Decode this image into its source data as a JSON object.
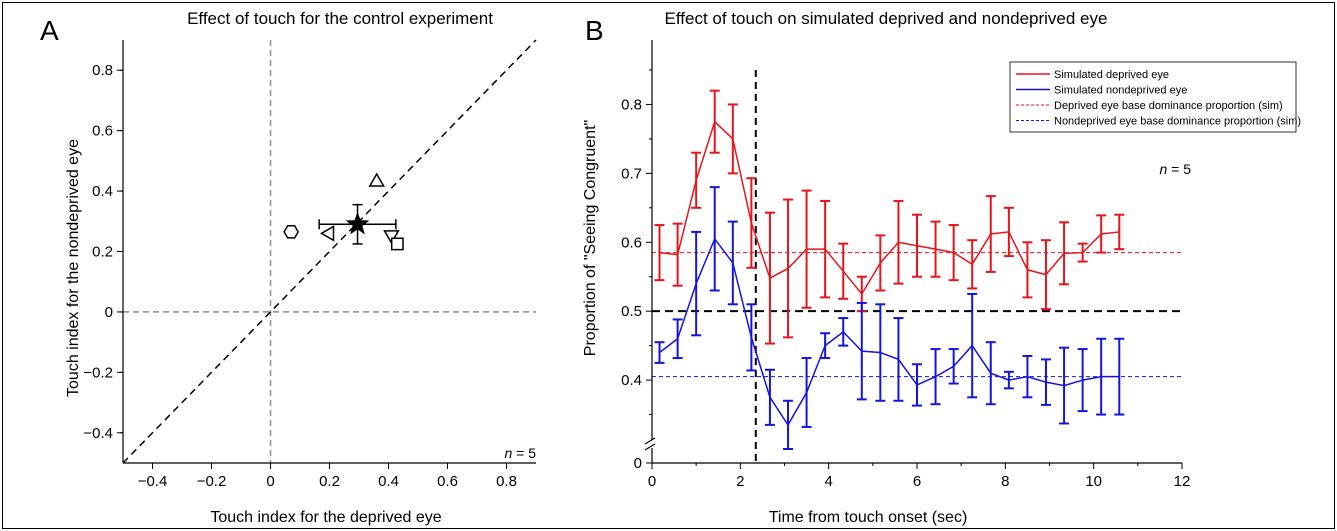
{
  "panel_a": {
    "letter": "A",
    "title": "Effect of touch for the control experiment",
    "n_prefix": "n",
    "n_suffix": " = 5"
  },
  "panel_b": {
    "letter": "B",
    "title": "Effect of touch on simulated deprived and nondeprived eye",
    "n_prefix": "n",
    "n_suffix": " = 5"
  },
  "colors": {
    "deprived": "#e8141c",
    "nondeprived": "#1414e0",
    "gray_ref": "#8c8c8c",
    "black": "#000000"
  },
  "chart_data": [
    {
      "type": "scatter",
      "title": "Effect of touch for the control experiment",
      "xlabel": "Touch index for the deprived eye",
      "ylabel": "Touch index for the nondeprived eye",
      "xlim": [
        -0.5,
        0.9
      ],
      "ylim": [
        -0.5,
        0.9
      ],
      "x_ticks": [
        -0.4,
        -0.2,
        0,
        0.2,
        0.4,
        0.6,
        0.8
      ],
      "x_tick_labels": [
        "−0.4",
        "−0.2",
        "0",
        "0.2",
        "0.4",
        "0.6",
        "0.8"
      ],
      "y_ticks": [
        -0.4,
        -0.2,
        0,
        0.2,
        0.4,
        0.6,
        0.8
      ],
      "y_tick_labels": [
        "−0.4",
        "−0.2",
        "0",
        "0.2",
        "0.4",
        "0.6",
        "0.8"
      ],
      "reference_lines": [
        "x = 0",
        "y = 0",
        "y = x"
      ],
      "grid": false,
      "points": [
        {
          "marker": "hexagon",
          "x": 0.07,
          "y": 0.265
        },
        {
          "marker": "triangle-left",
          "x": 0.2,
          "y": 0.26
        },
        {
          "marker": "triangle-up",
          "x": 0.36,
          "y": 0.43
        },
        {
          "marker": "triangle-down",
          "x": 0.41,
          "y": 0.255
        },
        {
          "marker": "square",
          "x": 0.43,
          "y": 0.225
        }
      ],
      "mean": {
        "marker": "star",
        "x": 0.295,
        "y": 0.29,
        "x_err": 0.13,
        "y_err": 0.065
      },
      "annotation": "n = 5"
    },
    {
      "type": "line",
      "title": "Effect of touch on simulated deprived and nondeprived eye",
      "xlabel": "Time from touch onset (sec)",
      "ylabel": "Proportion of \"Seeing Congruent\"",
      "xlim": [
        0,
        12
      ],
      "ylim": [
        0.3,
        0.85
      ],
      "y_axis_break": true,
      "x_ticks": [
        0,
        2,
        4,
        6,
        8,
        10,
        12
      ],
      "x_tick_labels": [
        "0",
        "2",
        "4",
        "6",
        "8",
        "10",
        "12"
      ],
      "y_ticks": [
        0.4,
        0.5,
        0.6,
        0.7,
        0.8
      ],
      "y_tick_labels": [
        "0.4",
        "0.5",
        "0.6",
        "0.7",
        "0.8"
      ],
      "y_zero_label": "0",
      "grid": false,
      "legend_position": "top-right",
      "x": [
        0.17,
        0.58,
        1.0,
        1.42,
        1.83,
        2.25,
        2.67,
        3.08,
        3.5,
        3.92,
        4.33,
        4.75,
        5.17,
        5.58,
        6.0,
        6.42,
        6.83,
        7.25,
        7.67,
        8.08,
        8.5,
        8.92,
        9.33,
        9.75,
        10.17,
        10.58
      ],
      "series": [
        {
          "name": "Simulated deprived eye",
          "color": "#e8141c",
          "values": [
            0.585,
            0.582,
            0.69,
            0.775,
            0.75,
            0.628,
            0.548,
            0.562,
            0.59,
            0.59,
            0.558,
            0.525,
            0.57,
            0.6,
            0.595,
            0.59,
            0.585,
            0.568,
            0.612,
            0.615,
            0.56,
            0.553,
            0.584,
            0.585,
            0.612,
            0.615
          ],
          "errors": [
            0.04,
            0.045,
            0.04,
            0.045,
            0.05,
            0.065,
            0.095,
            0.1,
            0.085,
            0.07,
            0.04,
            0.025,
            0.04,
            0.06,
            0.045,
            0.04,
            0.04,
            0.035,
            0.055,
            0.035,
            0.04,
            0.05,
            0.045,
            0.013,
            0.027,
            0.025
          ]
        },
        {
          "name": "Simulated nondeprived eye",
          "color": "#1414e0",
          "values": [
            0.44,
            0.46,
            0.54,
            0.605,
            0.57,
            0.462,
            0.375,
            0.335,
            0.382,
            0.45,
            0.47,
            0.442,
            0.44,
            0.43,
            0.393,
            0.405,
            0.42,
            0.45,
            0.41,
            0.4,
            0.405,
            0.397,
            0.392,
            0.4,
            0.405,
            0.405
          ],
          "errors": [
            0.015,
            0.028,
            0.075,
            0.075,
            0.06,
            0.048,
            0.04,
            0.035,
            0.05,
            0.018,
            0.02,
            0.07,
            0.07,
            0.06,
            0.03,
            0.04,
            0.025,
            0.075,
            0.045,
            0.012,
            0.03,
            0.033,
            0.055,
            0.045,
            0.055,
            0.055
          ]
        }
      ],
      "reference_lines": [
        {
          "name": "Deprived eye base dominance proportion (sim)",
          "y": 0.585,
          "color": "#e8141c",
          "style": "dashed"
        },
        {
          "name": "Nondeprived eye base dominance proportion (sim)",
          "y": 0.405,
          "color": "#1414e0",
          "style": "dashed"
        },
        {
          "y": 0.5,
          "color": "#000000",
          "style": "dashed"
        },
        {
          "x": 2.35,
          "color": "#000000",
          "style": "dashed",
          "orientation": "vertical"
        }
      ],
      "annotation": "n = 5"
    }
  ]
}
